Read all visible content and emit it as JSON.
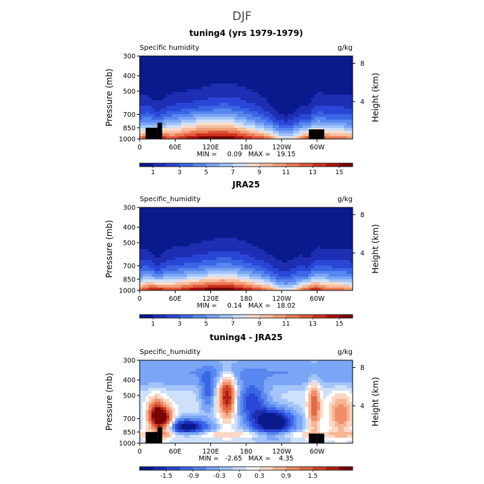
{
  "figure_title": "DJF",
  "palettes": {
    "humidity": [
      "#0a1a8c",
      "#1d2eb3",
      "#2a46d6",
      "#3a66e6",
      "#5887ef",
      "#7aa6f5",
      "#a3c4fa",
      "#cfe0fb",
      "#f6dccb",
      "#f8bea0",
      "#f29e77",
      "#ea7b54",
      "#e0573a",
      "#cc3220",
      "#ae1410",
      "#7a0404"
    ],
    "difference": [
      "#0a1a8c",
      "#1d2eb3",
      "#2a46d6",
      "#3a66e6",
      "#5887ef",
      "#7aa6f5",
      "#a3c4fa",
      "#cfe0fb",
      "#ffffff",
      "#fbd8c4",
      "#f6b494",
      "#ef8e68",
      "#e26a47",
      "#cf4128",
      "#b11f12",
      "#7a0404"
    ]
  },
  "chart_data": [
    {
      "type": "heatmap",
      "title": "tuning4 (yrs 1979-1979)",
      "left_label": "Specific humidity",
      "units": "g/kg",
      "xlabel": "",
      "ylabel": "Pressure (mb)",
      "ylabel_right": "Height (km)",
      "x_tick_labels": [
        "0",
        "60E",
        "120E",
        "180",
        "120W",
        "60W"
      ],
      "x_tick_lons": [
        0,
        60,
        120,
        180,
        240,
        300
      ],
      "xlim": [
        0,
        360
      ],
      "y_tick_labels": [
        "300",
        "400",
        "500",
        "700",
        "850",
        "1000"
      ],
      "y_tick_values": [
        300,
        400,
        500,
        700,
        850,
        1000
      ],
      "ylim": [
        300,
        1000
      ],
      "right_tick_labels": [
        "8",
        "4"
      ],
      "right_tick_km": [
        8,
        4
      ],
      "min_max_text": "MIN =     0.09   MAX =   19.15",
      "min": 0.09,
      "max": 19.15,
      "palette": "humidity",
      "levels": [
        0,
        1,
        2,
        3,
        4,
        5,
        6,
        7,
        8,
        9,
        10,
        11,
        12,
        13,
        14,
        15,
        16
      ],
      "colorbar_labels": [
        "1",
        "3",
        "5",
        "7",
        "9",
        "11",
        "13",
        "15"
      ],
      "colorbar_label_boundaries": [
        1,
        3,
        5,
        7,
        9,
        11,
        13,
        15
      ],
      "field": "tuning4",
      "topography": [
        [
          10,
          30,
          850
        ],
        [
          30,
          38,
          790
        ],
        [
          286,
          300,
          870
        ],
        [
          300,
          312,
          870
        ]
      ]
    },
    {
      "type": "heatmap",
      "title": "JRA25",
      "left_label": "Specific_humidity",
      "units": "g/kg",
      "xlabel": "",
      "ylabel": "Pressure (mb)",
      "ylabel_right": "Height (km)",
      "x_tick_labels": [
        "0",
        "60E",
        "120E",
        "180",
        "120W",
        "60W"
      ],
      "x_tick_lons": [
        0,
        60,
        120,
        180,
        240,
        300
      ],
      "xlim": [
        0,
        360
      ],
      "y_tick_labels": [
        "300",
        "400",
        "500",
        "700",
        "850",
        "1000"
      ],
      "y_tick_values": [
        300,
        400,
        500,
        700,
        850,
        1000
      ],
      "ylim": [
        300,
        1000
      ],
      "right_tick_labels": [
        "8",
        "4"
      ],
      "right_tick_km": [
        8,
        4
      ],
      "min_max_text": "MIN =     0.14   MAX =   18.02",
      "min": 0.14,
      "max": 18.02,
      "palette": "humidity",
      "levels": [
        0,
        1,
        2,
        3,
        4,
        5,
        6,
        7,
        8,
        9,
        10,
        11,
        12,
        13,
        14,
        15,
        16
      ],
      "colorbar_labels": [
        "1",
        "3",
        "5",
        "7",
        "9",
        "11",
        "13",
        "15"
      ],
      "colorbar_label_boundaries": [
        1,
        3,
        5,
        7,
        9,
        11,
        13,
        15
      ],
      "field": "jra25",
      "topography": []
    },
    {
      "type": "heatmap",
      "title": "tuning4 - JRA25",
      "left_label": "Specific_humidity",
      "units": "g/kg",
      "xlabel": "",
      "ylabel": "Pressure (mb)",
      "ylabel_right": "Height (km)",
      "x_tick_labels": [
        "0",
        "60E",
        "120E",
        "180",
        "120W",
        "60W"
      ],
      "x_tick_lons": [
        0,
        60,
        120,
        180,
        240,
        300
      ],
      "xlim": [
        0,
        360
      ],
      "y_tick_labels": [
        "300",
        "400",
        "500",
        "700",
        "850",
        "1000"
      ],
      "y_tick_values": [
        300,
        400,
        500,
        700,
        850,
        1000
      ],
      "ylim": [
        300,
        1000
      ],
      "right_tick_labels": [
        "8",
        "4"
      ],
      "right_tick_km": [
        8,
        4
      ],
      "min_max_text": "MIN =   -2.65   MAX =    4.35",
      "min": -2.65,
      "max": 4.35,
      "palette": "difference",
      "levels": [
        -2.1,
        -1.8,
        -1.5,
        -1.2,
        -0.9,
        -0.6,
        -0.3,
        -0.1,
        0.1,
        0.3,
        0.6,
        0.9,
        1.2,
        1.5,
        1.8,
        2.1,
        2.4
      ],
      "colorbar_labels": [
        "-1.5",
        "-0.9",
        "-0.3",
        "0",
        "0.3",
        "0.9",
        "1.5"
      ],
      "colorbar_label_boundaries": [
        -1.5,
        -0.9,
        -0.3,
        0,
        0.3,
        0.9,
        1.5
      ],
      "field": "diff",
      "topography": [
        [
          10,
          30,
          850
        ],
        [
          30,
          38,
          790
        ],
        [
          286,
          300,
          870
        ],
        [
          300,
          312,
          870
        ]
      ]
    }
  ]
}
